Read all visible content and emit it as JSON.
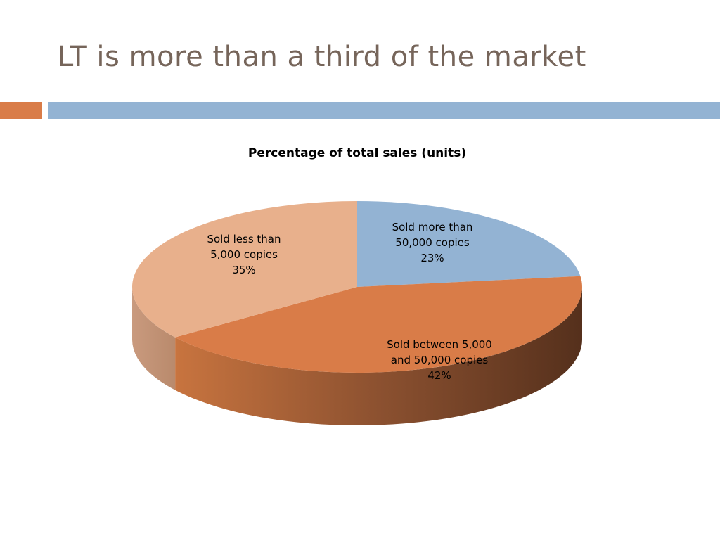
{
  "slide": {
    "title": "LT is more than a third of the market"
  },
  "chart_data": {
    "type": "pie3d",
    "title": "Percentage of total sales (units)",
    "categories": [
      "Sold more than 50,000 copies",
      "Sold between 5,000 and 50,000 copies",
      "Sold less than 5,000 copies"
    ],
    "values": [
      23,
      42,
      35
    ],
    "value_labels": [
      "23%",
      "42%",
      "35%"
    ],
    "colors": [
      "#93b3d3",
      "#d97c48",
      "#e8b08c"
    ]
  }
}
